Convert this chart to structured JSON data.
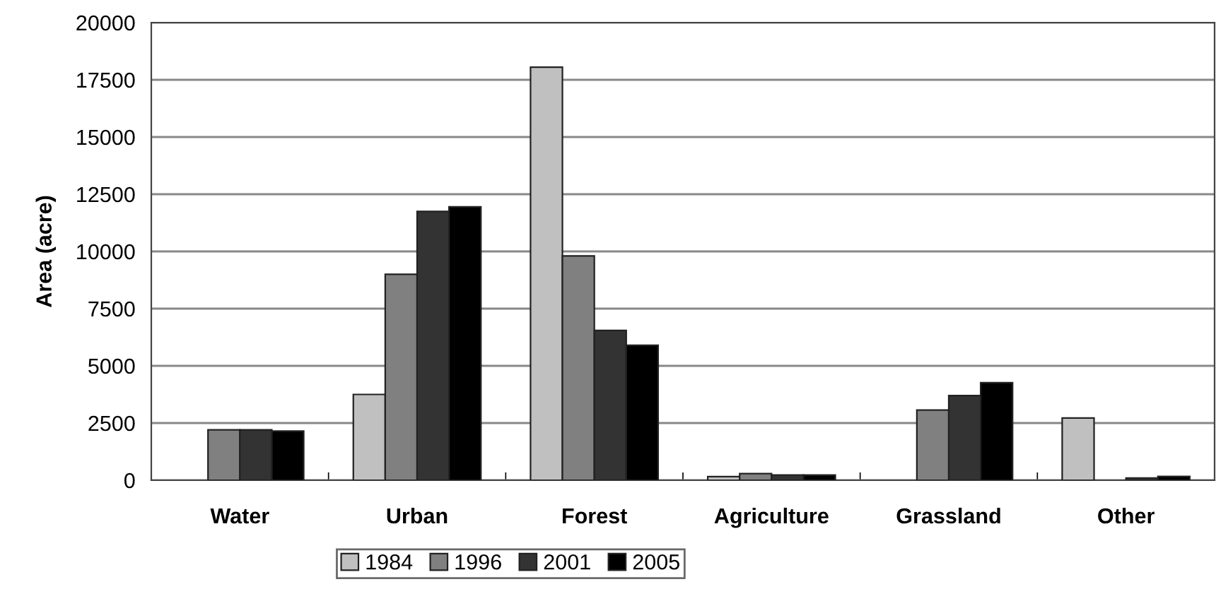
{
  "chart_data": {
    "type": "bar",
    "ylabel": "Area (acre)",
    "categories": [
      "Water",
      "Urban",
      "Forest",
      "Agriculture",
      "Grassland",
      "Other"
    ],
    "series": [
      {
        "name": "1984",
        "color": "#c0c0c0",
        "values": [
          null,
          3750,
          18050,
          160,
          null,
          2720
        ]
      },
      {
        "name": "1996",
        "color": "#808080",
        "values": [
          2200,
          9000,
          9800,
          290,
          3070,
          null
        ]
      },
      {
        "name": "2001",
        "color": "#333333",
        "values": [
          2200,
          11750,
          6550,
          230,
          3700,
          100
        ]
      },
      {
        "name": "2005",
        "color": "#000000",
        "values": [
          2150,
          11950,
          5900,
          230,
          4260,
          170
        ]
      }
    ],
    "ylim": [
      0,
      20000
    ],
    "yticks": [
      0,
      2500,
      5000,
      7500,
      10000,
      12500,
      15000,
      17500,
      20000
    ],
    "grid": "y",
    "legend": "bottom"
  }
}
